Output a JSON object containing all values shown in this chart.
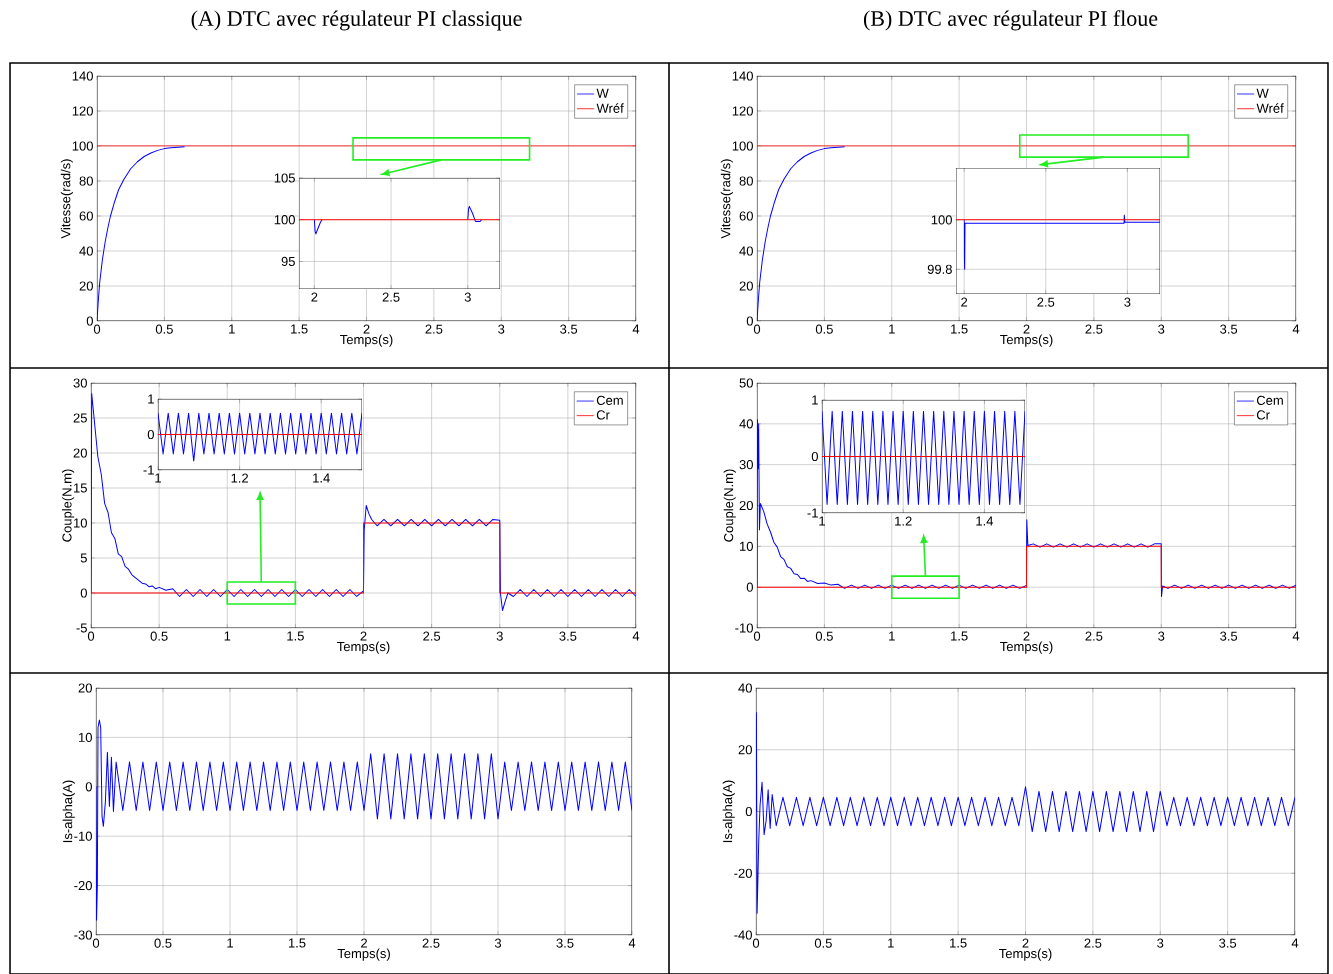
{
  "chart_data": [
    {
      "type": "line",
      "title": "(A) DTC avec régulateur PI classique",
      "xlabel": "Temps(s)",
      "ylabel": "Vitesse(rad/s)",
      "xlim": [
        0,
        4
      ],
      "ylim": [
        0,
        140
      ],
      "xticks": [
        0,
        0.5,
        1,
        1.5,
        2,
        2.5,
        3,
        3.5,
        4
      ],
      "yticks": [
        0,
        20,
        40,
        60,
        80,
        100,
        120,
        140
      ],
      "grid": true,
      "legend": "top right",
      "series": [
        {
          "name": "W",
          "color": "#0000ff",
          "x": [
            0,
            0.01,
            0.02,
            0.04,
            0.06,
            0.08,
            0.1,
            0.13,
            0.16,
            0.2,
            0.25,
            0.3,
            0.35,
            0.4,
            0.45,
            0.5,
            0.55,
            0.65
          ],
          "values": [
            0,
            12,
            22,
            35,
            45,
            53,
            60,
            68,
            75,
            81,
            87,
            91,
            94,
            96,
            97.5,
            98.5,
            99,
            99.5
          ]
        },
        {
          "name": "Wréf",
          "color": "#ff0000",
          "x": [
            0,
            4
          ],
          "values": [
            100,
            100
          ]
        }
      ]
    },
    {
      "type": "line",
      "xlim": [
        1.9,
        3.21
      ],
      "ylim": [
        91.7,
        105
      ],
      "xticks": [
        2,
        2.5,
        3
      ],
      "yticks": [
        95,
        100,
        105
      ],
      "grid": true,
      "series": [
        {
          "color": "#0000ff",
          "x": [
            2,
            2.005,
            2.01,
            2.02,
            2.04,
            2.05,
            2.5,
            3,
            3.005,
            3.01,
            3.03,
            3.05,
            3.08,
            3.09
          ],
          "values": [
            100,
            98.6,
            98.3,
            98.8,
            99.7,
            100,
            null,
            100,
            101.3,
            101.6,
            100.8,
            99.8,
            99.8,
            100
          ]
        },
        {
          "color": "#ff0000",
          "x": [
            1.9,
            3.21
          ],
          "values": [
            100,
            100
          ]
        }
      ]
    },
    {
      "type": "line",
      "title": "(B) DTC avec régulateur PI floue",
      "xlabel": "Temps(s)",
      "ylabel": "Vitesse(rad/s)",
      "xlim": [
        0,
        4
      ],
      "ylim": [
        0,
        140
      ],
      "xticks": [
        0,
        0.5,
        1,
        1.5,
        2,
        2.5,
        3,
        3.5,
        4
      ],
      "yticks": [
        0,
        20,
        40,
        60,
        80,
        100,
        120,
        140
      ],
      "grid": true,
      "legend": "top right",
      "series": [
        {
          "name": "W",
          "color": "#0000ff",
          "x": [
            0,
            0.01,
            0.02,
            0.04,
            0.06,
            0.08,
            0.1,
            0.13,
            0.16,
            0.2,
            0.25,
            0.3,
            0.35,
            0.4,
            0.45,
            0.5,
            0.55,
            0.65
          ],
          "values": [
            0,
            12,
            22,
            35,
            45,
            53,
            60,
            68,
            75,
            81,
            87,
            91,
            94,
            96,
            97.5,
            98.5,
            99,
            99.5
          ]
        },
        {
          "name": "Wréf",
          "color": "#ff0000",
          "x": [
            0,
            4
          ],
          "values": [
            100,
            100
          ]
        }
      ]
    },
    {
      "type": "line",
      "xlim": [
        1.95,
        3.2
      ],
      "ylim": [
        99.7,
        100.21
      ],
      "xticks": [
        2,
        2.5,
        3
      ],
      "yticks": [
        99.8,
        100
      ],
      "grid": true,
      "series": [
        {
          "color": "#0000ff",
          "x": [
            2,
            2.001,
            2.003,
            2.005,
            2.98,
            2.981,
            2.985,
            3.2
          ],
          "values": [
            100,
            99.85,
            99.8,
            99.986,
            99.986,
            100.02,
            99.99,
            99.99
          ]
        },
        {
          "color": "#ff0000",
          "x": [
            1.95,
            3.2
          ],
          "values": [
            100,
            100
          ]
        }
      ]
    },
    {
      "type": "line",
      "xlabel": "Temps(s)",
      "ylabel": "Couple(N.m)",
      "xlim": [
        0,
        4
      ],
      "ylim": [
        -5,
        30
      ],
      "xticks": [
        0,
        0.5,
        1,
        1.5,
        2,
        2.5,
        3,
        3.5,
        4
      ],
      "yticks": [
        -5,
        0,
        5,
        10,
        15,
        20,
        25,
        30
      ],
      "grid": true,
      "legend": "top right",
      "series": [
        {
          "name": "Cem",
          "color": "#0000ff",
          "x": [
            0,
            0.005,
            0.025,
            0.05,
            0.075,
            0.1,
            0.125,
            0.15,
            0.175,
            0.2,
            0.225,
            0.25,
            0.275,
            0.3,
            0.325,
            0.35,
            0.375,
            0.4,
            0.425,
            0.45,
            0.475,
            0.5,
            0.55,
            0.6,
            0.65,
            0.7,
            0.75,
            0.8,
            0.85,
            0.9,
            0.95,
            1,
            1.05,
            1.1,
            1.15,
            1.2,
            1.25,
            1.3,
            1.35,
            1.4,
            1.45,
            1.5,
            1.55,
            1.6,
            1.65,
            1.7,
            1.75,
            1.8,
            1.85,
            1.9,
            1.95,
            2,
            2.005,
            2.02,
            2.04,
            2.06,
            2.1,
            2.15,
            2.2,
            2.25,
            2.3,
            2.35,
            2.4,
            2.45,
            2.5,
            2.55,
            2.6,
            2.65,
            2.7,
            2.75,
            2.8,
            2.85,
            2.9,
            2.95,
            3,
            3.005,
            3.02,
            3.04,
            3.06,
            3.1,
            3.15,
            3.2,
            3.25,
            3.3,
            3.35,
            3.4,
            3.45,
            3.5,
            3.55,
            3.6,
            3.65,
            3.7,
            3.75,
            3.8,
            3.85,
            3.9,
            3.95,
            4
          ],
          "values": [
            0,
            28.5,
            24.5,
            19.5,
            17,
            12.8,
            11.5,
            8.6,
            7.8,
            5.6,
            5.2,
            3.8,
            3.4,
            2.6,
            2.2,
            1.8,
            1.4,
            1.3,
            0.9,
            1,
            0.6,
            0.8,
            0.4,
            0.6,
            -0.5,
            0.5,
            -0.5,
            0.5,
            -0.5,
            0.5,
            -0.5,
            0.5,
            -0.5,
            0.5,
            -0.5,
            0.5,
            -0.5,
            0.5,
            -0.5,
            0.5,
            -0.5,
            0.5,
            -0.5,
            0.5,
            -0.5,
            0.5,
            -0.5,
            0.5,
            -0.5,
            0.5,
            -0.5,
            0.3,
            9,
            12.5,
            11.3,
            10.5,
            9.6,
            10.5,
            9.6,
            10.5,
            9.6,
            10.5,
            9.6,
            10.5,
            9.6,
            10.5,
            9.6,
            10.5,
            9.6,
            10.5,
            9.6,
            10.5,
            9.6,
            10.5,
            10.4,
            0,
            -2.5,
            -1.2,
            0,
            -0.5,
            0.5,
            -0.5,
            0.5,
            -0.5,
            0.5,
            -0.5,
            0.5,
            -0.5,
            0.5,
            -0.5,
            0.5,
            -0.5,
            0.5,
            -0.5,
            0.5,
            -0.5,
            0.5,
            -0.5
          ]
        },
        {
          "name": "Cr",
          "color": "#ff0000",
          "x": [
            0,
            2,
            2,
            3,
            3,
            4
          ],
          "values": [
            0,
            0,
            10,
            10,
            0,
            0
          ]
        }
      ]
    },
    {
      "type": "line",
      "xlim": [
        1,
        1.5
      ],
      "ylim": [
        -1,
        1
      ],
      "xticks": [
        1,
        1.2,
        1.4
      ],
      "yticks": [
        -1,
        0,
        1
      ],
      "grid": true,
      "series": [
        {
          "color": "#0000ff",
          "x": [
            1,
            1.0125,
            1.025,
            1.0375,
            1.05,
            1.0625,
            1.075,
            1.0875,
            1.1,
            1.1125,
            1.125,
            1.1375,
            1.15,
            1.1625,
            1.175,
            1.1875,
            1.2,
            1.2125,
            1.225,
            1.2375,
            1.25,
            1.2625,
            1.275,
            1.2875,
            1.3,
            1.3125,
            1.325,
            1.3375,
            1.35,
            1.3625,
            1.375,
            1.3875,
            1.4,
            1.4125,
            1.425,
            1.4375,
            1.45,
            1.4625,
            1.475,
            1.4875,
            1.5
          ],
          "values": [
            0.6,
            -0.55,
            0.6,
            -0.55,
            0.6,
            -0.55,
            0.6,
            -0.75,
            0.6,
            -0.55,
            0.6,
            -0.55,
            0.6,
            -0.55,
            0.6,
            -0.55,
            0.6,
            -0.55,
            0.6,
            -0.55,
            0.6,
            -0.55,
            0.6,
            -0.55,
            0.6,
            -0.55,
            0.6,
            -0.55,
            0.6,
            -0.55,
            0.6,
            -0.55,
            0.6,
            -0.55,
            0.6,
            -0.55,
            0.6,
            -0.55,
            0.6,
            -0.55,
            0.6
          ]
        },
        {
          "color": "#ff0000",
          "x": [
            1,
            1.5
          ],
          "values": [
            0,
            0
          ]
        }
      ]
    },
    {
      "type": "line",
      "xlabel": "Temps(s)",
      "ylabel": "Couple(N.m)",
      "xlim": [
        0,
        4
      ],
      "ylim": [
        -10,
        50
      ],
      "xticks": [
        0,
        0.5,
        1,
        1.5,
        2,
        2.5,
        3,
        3.5,
        4
      ],
      "yticks": [
        -10,
        0,
        10,
        20,
        30,
        40,
        50
      ],
      "grid": true,
      "legend": "top right",
      "series": [
        {
          "name": "Cem",
          "color": "#0000ff",
          "x": [
            0,
            0.003,
            0.008,
            0.012,
            0.018,
            0.025,
            0.05,
            0.075,
            0.1,
            0.125,
            0.15,
            0.175,
            0.2,
            0.225,
            0.25,
            0.275,
            0.3,
            0.325,
            0.35,
            0.375,
            0.4,
            0.45,
            0.5,
            0.55,
            0.6,
            0.65,
            0.7,
            0.75,
            0.8,
            0.85,
            0.9,
            0.95,
            1,
            1.05,
            1.1,
            1.15,
            1.2,
            1.25,
            1.3,
            1.35,
            1.4,
            1.45,
            1.5,
            1.55,
            1.6,
            1.65,
            1.7,
            1.75,
            1.8,
            1.85,
            1.9,
            1.95,
            2,
            2.002,
            2.01,
            2.05,
            2.1,
            2.15,
            2.2,
            2.25,
            2.3,
            2.35,
            2.4,
            2.45,
            2.5,
            2.55,
            2.6,
            2.65,
            2.7,
            2.75,
            2.8,
            2.85,
            2.9,
            2.95,
            3,
            3.002,
            3.01,
            3.05,
            3.1,
            3.15,
            3.2,
            3.25,
            3.3,
            3.35,
            3.4,
            3.45,
            3.5,
            3.55,
            3.6,
            3.65,
            3.7,
            3.75,
            3.8,
            3.85,
            3.9,
            3.95,
            4
          ],
          "values": [
            0,
            41,
            29,
            40,
            14,
            20.5,
            18.5,
            15.5,
            13.5,
            11,
            9.8,
            7.5,
            6.8,
            5,
            4.6,
            3.3,
            3.1,
            2.1,
            2.2,
            1.4,
            1.6,
            0.9,
            1,
            0.5,
            0.7,
            -0.3,
            0.5,
            -0.3,
            0.5,
            -0.3,
            0.5,
            -0.3,
            0.5,
            -0.3,
            0.5,
            -0.3,
            0.5,
            -0.3,
            0.5,
            -0.3,
            0.5,
            -0.3,
            0.5,
            -0.3,
            0.5,
            -0.3,
            0.5,
            -0.3,
            0.5,
            -0.3,
            0.5,
            -0.3,
            0.4,
            16.5,
            10.2,
            10.6,
            9.8,
            10.6,
            9.8,
            10.6,
            9.8,
            10.6,
            9.8,
            10.6,
            9.8,
            10.6,
            9.8,
            10.6,
            9.8,
            10.6,
            9.8,
            10.6,
            9.8,
            10.6,
            10.6,
            -2.3,
            0.3,
            -0.3,
            0.5,
            -0.3,
            0.5,
            -0.3,
            0.5,
            -0.3,
            0.5,
            -0.3,
            0.5,
            -0.3,
            0.5,
            -0.3,
            0.5,
            -0.3,
            0.5,
            -0.3,
            0.5,
            -0.3,
            0.5
          ]
        },
        {
          "name": "Cr",
          "color": "#ff0000",
          "x": [
            0,
            2,
            2,
            3,
            3,
            4
          ],
          "values": [
            0,
            0,
            10,
            10,
            0,
            0
          ]
        }
      ]
    },
    {
      "type": "line",
      "xlim": [
        1,
        1.5
      ],
      "ylim": [
        -1,
        1
      ],
      "xticks": [
        1,
        1.2,
        1.4
      ],
      "yticks": [
        -1,
        0,
        1
      ],
      "grid": true,
      "series": [
        {
          "color": "#0000ff",
          "x": [
            1,
            1.0125,
            1.025,
            1.0375,
            1.05,
            1.0625,
            1.075,
            1.0875,
            1.1,
            1.1125,
            1.125,
            1.1375,
            1.15,
            1.1625,
            1.175,
            1.1875,
            1.2,
            1.2125,
            1.225,
            1.2375,
            1.25,
            1.2625,
            1.275,
            1.2875,
            1.3,
            1.3125,
            1.325,
            1.3375,
            1.35,
            1.3625,
            1.375,
            1.3875,
            1.4,
            1.4125,
            1.425,
            1.4375,
            1.45,
            1.4625,
            1.475,
            1.4875,
            1.5
          ],
          "values": [
            0.8,
            -0.85,
            0.8,
            -0.85,
            0.8,
            -0.85,
            0.8,
            -0.85,
            0.8,
            -0.85,
            0.8,
            -0.85,
            0.8,
            -0.85,
            0.8,
            -0.85,
            0.8,
            -0.85,
            0.8,
            -0.85,
            0.8,
            -0.85,
            0.8,
            -0.85,
            0.8,
            -0.85,
            0.8,
            -0.85,
            0.8,
            -0.85,
            0.8,
            -0.85,
            0.8,
            -0.85,
            0.8,
            -0.85,
            0.8,
            -0.85,
            0.8,
            -0.85,
            0.8
          ]
        },
        {
          "color": "#ff0000",
          "x": [
            1,
            1.5
          ],
          "values": [
            0,
            0
          ]
        }
      ]
    },
    {
      "type": "line",
      "xlabel": "Temps(s)",
      "ylabel": "Is-alpha(A)",
      "xlim": [
        0,
        4
      ],
      "ylim": [
        -30,
        20
      ],
      "xticks": [
        0,
        0.5,
        1,
        1.5,
        2,
        2.5,
        3,
        3.5,
        4
      ],
      "yticks": [
        -30,
        -20,
        -10,
        0,
        10,
        20
      ],
      "grid": true,
      "series": [
        {
          "color": "#0000ff",
          "x": [
            0,
            0.004,
            0.01,
            0.015,
            0.025,
            0.035,
            0.045,
            0.055,
            0.07,
            0.085,
            0.1,
            0.115,
            0.13,
            0.15,
            0.2,
            0.25,
            0.3,
            0.35,
            0.4,
            0.45,
            0.5,
            0.55,
            0.6,
            0.65,
            0.7,
            0.75,
            0.8,
            0.85,
            0.9,
            0.95,
            1,
            1.05,
            1.1,
            1.15,
            1.2,
            1.25,
            1.3,
            1.35,
            1.4,
            1.45,
            1.5,
            1.55,
            1.6,
            1.65,
            1.7,
            1.75,
            1.8,
            1.85,
            1.9,
            1.95,
            2,
            2.05,
            2.1,
            2.15,
            2.2,
            2.25,
            2.3,
            2.35,
            2.4,
            2.45,
            2.5,
            2.55,
            2.6,
            2.65,
            2.7,
            2.75,
            2.8,
            2.85,
            2.9,
            2.95,
            3,
            3.05,
            3.1,
            3.15,
            3.2,
            3.25,
            3.3,
            3.35,
            3.4,
            3.45,
            3.5,
            3.55,
            3.6,
            3.65,
            3.7,
            3.75,
            3.8,
            3.85,
            3.9,
            3.95,
            4
          ],
          "values": [
            0,
            -27,
            -20,
            12,
            13.5,
            12,
            -6,
            -8,
            -3,
            7,
            -4,
            6,
            -5,
            5,
            -4.8,
            5,
            -4.8,
            5,
            -4.8,
            5,
            -4.8,
            5,
            -4.8,
            5,
            -4.8,
            5,
            -4.8,
            5,
            -4.8,
            5,
            -4.8,
            5,
            -4.8,
            5,
            -4.8,
            5,
            -4.8,
            5,
            -4.8,
            5,
            -4.8,
            5,
            -4.8,
            5,
            -4.8,
            5,
            -4.8,
            5,
            -4.8,
            5,
            -4.8,
            6.7,
            -6.5,
            6.7,
            -6.5,
            6.7,
            -6.5,
            6.7,
            -6.5,
            6.7,
            -6.5,
            6.7,
            -6.5,
            6.7,
            -6.5,
            6.7,
            -6.5,
            6.7,
            -6.5,
            6.7,
            -6.5,
            5,
            -4.8,
            5,
            -4.8,
            5,
            -4.8,
            5,
            -4.8,
            5,
            -4.8,
            5,
            -4.8,
            5,
            -4.8,
            5,
            -4.8,
            5,
            -4.8,
            5,
            -4.8
          ]
        }
      ]
    },
    {
      "type": "line",
      "xlabel": "Temps(s)",
      "ylabel": "Is-alpha(A)",
      "xlim": [
        0,
        4
      ],
      "ylim": [
        -40,
        40
      ],
      "xticks": [
        0,
        0.5,
        1,
        1.5,
        2,
        2.5,
        3,
        3.5,
        4
      ],
      "yticks": [
        -40,
        -20,
        0,
        20,
        40
      ],
      "grid": true,
      "series": [
        {
          "color": "#0000ff",
          "x": [
            0,
            0.003,
            0.008,
            0.012,
            0.02,
            0.03,
            0.045,
            0.06,
            0.075,
            0.09,
            0.105,
            0.12,
            0.15,
            0.2,
            0.25,
            0.3,
            0.35,
            0.4,
            0.45,
            0.5,
            0.55,
            0.6,
            0.65,
            0.7,
            0.75,
            0.8,
            0.85,
            0.9,
            0.95,
            1,
            1.05,
            1.1,
            1.15,
            1.2,
            1.25,
            1.3,
            1.35,
            1.4,
            1.45,
            1.5,
            1.55,
            1.6,
            1.65,
            1.7,
            1.75,
            1.8,
            1.85,
            1.9,
            1.95,
            2,
            2.05,
            2.1,
            2.15,
            2.2,
            2.25,
            2.3,
            2.35,
            2.4,
            2.45,
            2.5,
            2.55,
            2.6,
            2.65,
            2.7,
            2.75,
            2.8,
            2.85,
            2.9,
            2.95,
            3,
            3.05,
            3.1,
            3.15,
            3.2,
            3.25,
            3.3,
            3.35,
            3.4,
            3.45,
            3.5,
            3.55,
            3.6,
            3.65,
            3.7,
            3.75,
            3.8,
            3.85,
            3.9,
            3.95,
            4
          ],
          "values": [
            0,
            32,
            -33,
            -26,
            -10,
            2,
            9.5,
            -7.5,
            -3,
            7,
            -5.5,
            5.5,
            -4.6,
            4.6,
            -4.6,
            4.6,
            -4.6,
            4.6,
            -4.6,
            4.6,
            -4.6,
            4.6,
            -4.6,
            4.6,
            -4.6,
            4.6,
            -4.6,
            4.6,
            -4.6,
            4.6,
            -4.6,
            4.6,
            -4.6,
            4.6,
            -4.6,
            4.6,
            -4.6,
            4.6,
            -4.6,
            4.6,
            -4.6,
            4.6,
            -4.6,
            4.6,
            -4.6,
            4.6,
            -4.6,
            4.6,
            -4.6,
            8,
            -6.5,
            6.5,
            -6.5,
            6.5,
            -6.5,
            6.5,
            -6.5,
            6.5,
            -6.5,
            6.5,
            -6.5,
            6.5,
            -6.5,
            6.5,
            -6.5,
            6.5,
            -6.5,
            6.5,
            -6.5,
            6.5,
            -4.6,
            4.6,
            -4.6,
            4.6,
            -4.6,
            4.6,
            -4.6,
            4.6,
            -4.6,
            4.6,
            -4.6,
            4.6,
            -4.6,
            4.6,
            -4.6,
            4.6,
            -4.6,
            4.6,
            -4.6,
            4.6
          ]
        }
      ]
    }
  ]
}
